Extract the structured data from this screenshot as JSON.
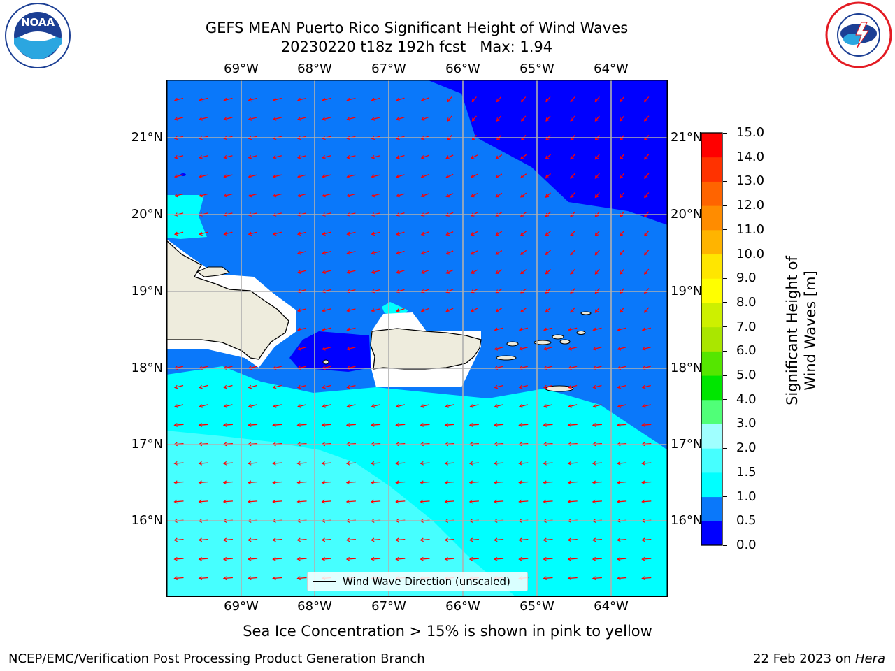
{
  "header": {
    "title_line1": "GEFS MEAN Puerto Rico Significant Height of Wind Waves",
    "title_line2": "20230220 t18z 192h fcst   Max: 1.94"
  },
  "logos": {
    "left": {
      "text": "NOAA",
      "ring_text": "NATIONAL OCEANIC AND ATMOSPHERIC ADMINISTRATION · U.S. DEPARTMENT OF COMMERCE"
    },
    "right": {
      "ring_text": "NATIONAL WEATHER SERVICE"
    }
  },
  "map": {
    "lon_labels": [
      "69°W",
      "68°W",
      "67°W",
      "66°W",
      "65°W",
      "64°W"
    ],
    "lat_labels": [
      "21°N",
      "20°N",
      "19°N",
      "18°N",
      "17°N",
      "16°N"
    ],
    "legend_label": "Wind Wave Direction (unscaled)",
    "wave_direction": "toward west-southwest",
    "colors": {
      "land": "#eeecdd",
      "ice_free_halo": "#ffffff",
      "arrow": "#ff0000",
      "grid": "#b0b0b0"
    }
  },
  "colorbar": {
    "label": "Significant Height of Wind Waves [m]",
    "ticks": [
      "0.0",
      "0.5",
      "1.0",
      "1.5",
      "2.0",
      "3.0",
      "4.0",
      "5.0",
      "6.0",
      "7.0",
      "8.0",
      "9.0",
      "10.0",
      "11.0",
      "12.0",
      "13.0",
      "14.0",
      "15.0"
    ],
    "colors": [
      "#0000ff",
      "#0a78fa",
      "#00ffff",
      "#46ffff",
      "#a0ffff",
      "#50ff78",
      "#00e600",
      "#55e600",
      "#aae600",
      "#cdf000",
      "#ffff00",
      "#ffe600",
      "#ffb400",
      "#ff8c00",
      "#ff6400",
      "#ff3200",
      "#ff0000"
    ]
  },
  "notes": {
    "sea_ice": "Sea Ice Concentration > 15% is shown in pink to yellow"
  },
  "footer": {
    "left": "NCEP/EMC/Verification Post Processing Product Generation Branch",
    "date": "22 Feb 2023 on ",
    "host": "Hera"
  }
}
